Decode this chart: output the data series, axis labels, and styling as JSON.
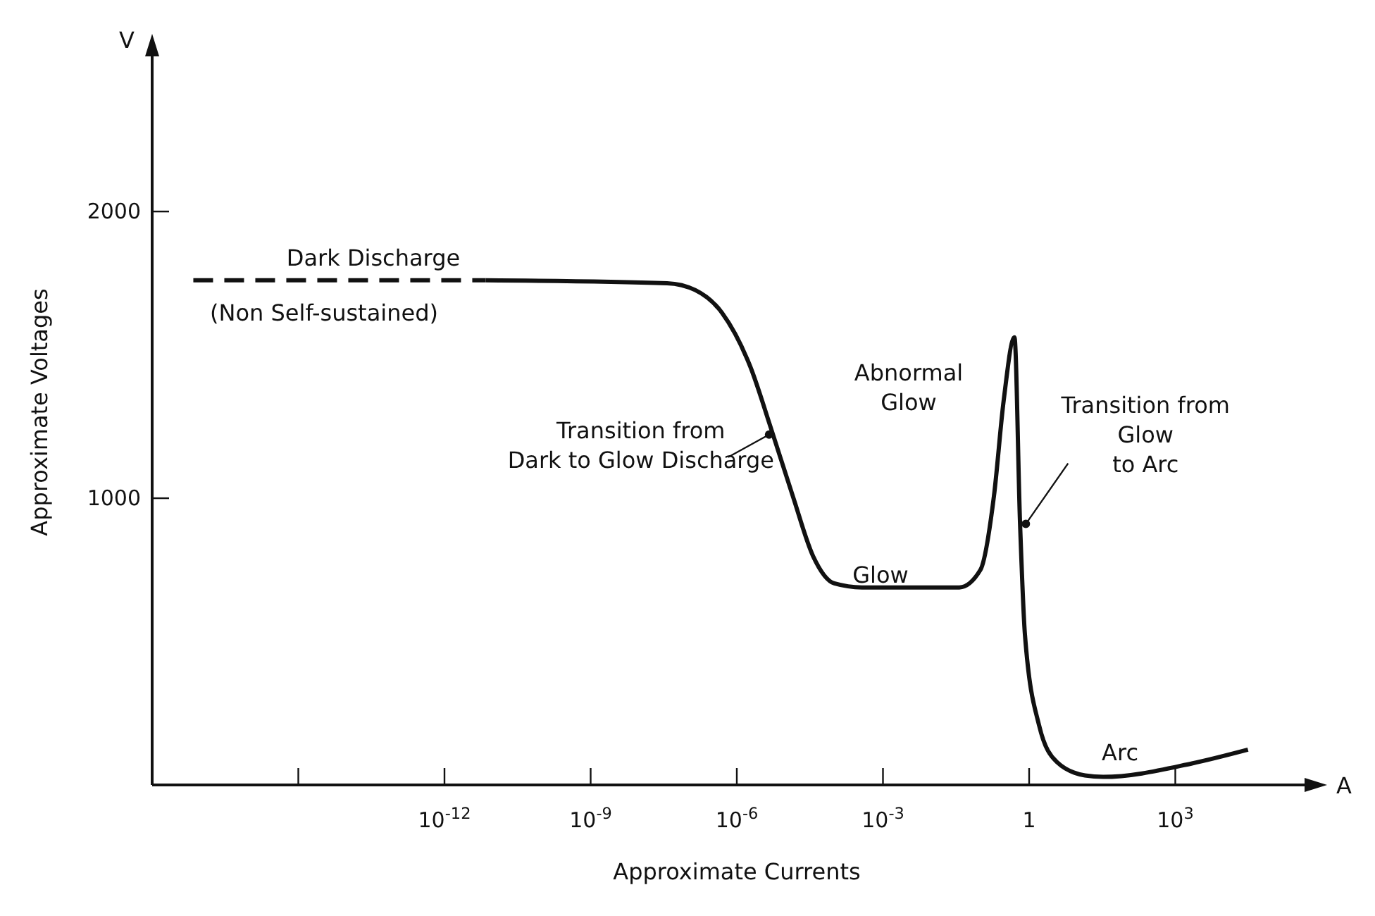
{
  "chart_data": {
    "type": "line",
    "xlabel": "Approximate Currents",
    "ylabel": "Approximate Voltages",
    "log": "x",
    "xlim": [
      1e-18,
      1000000.0
    ],
    "ylim": [
      0,
      2600
    ],
    "xticks": [
      {
        "value": 1e-15,
        "label": null
      },
      {
        "value": 1e-12,
        "label": "10$^{-12}$"
      },
      {
        "value": 1e-09,
        "label": "10$^{-9}$"
      },
      {
        "value": 1e-06,
        "label": "10$^{-6}$"
      },
      {
        "value": 0.001,
        "label": "10$^{-3}$"
      },
      1,
      {
        "value": 1000,
        "label": "10$^{3}$"
      }
    ],
    "yticks": [
      1000,
      2000
    ],
    "series": [
      {
        "color": "#111111",
        "line_style": "dashed",
        "x": [
          7e-18,
          7e-12
        ],
        "values": [
          1760,
          1760
        ]
      },
      {
        "color": "#111111",
        "line_style": "solid",
        "x": [
          7e-12,
          3.7e-08,
          1.4e-07,
          5e-07,
          1.9e-06,
          5e-06,
          1.4e-05,
          3.7e-05,
          0.0001,
          0.00037,
          0.037,
          0.1,
          0.19,
          0.3,
          0.5,
          0.65,
          0.82,
          1.6,
          3.7,
          14,
          33,
          2200,
          31000
        ],
        "values": [
          1760,
          1750,
          1726,
          1646,
          1458,
          1245,
          1009,
          797,
          703,
          689,
          689,
          750,
          1009,
          1340,
          1561,
          915,
          524,
          208,
          80,
          33,
          28,
          75,
          123
        ]
      }
    ],
    "annotations": [
      "V",
      "A",
      "Dark Discharge",
      "(Non Self-sustained)",
      {
        "text": "Transition from\nDark to Glow Discharge",
        "x": 6e-06,
        "y": 1222
      },
      "Abnormal\nGlow",
      "Glow",
      {
        "text": "Transition from\nGlow\nto Arc",
        "x": 0.7,
        "y": 925
      },
      "Arc"
    ]
  }
}
